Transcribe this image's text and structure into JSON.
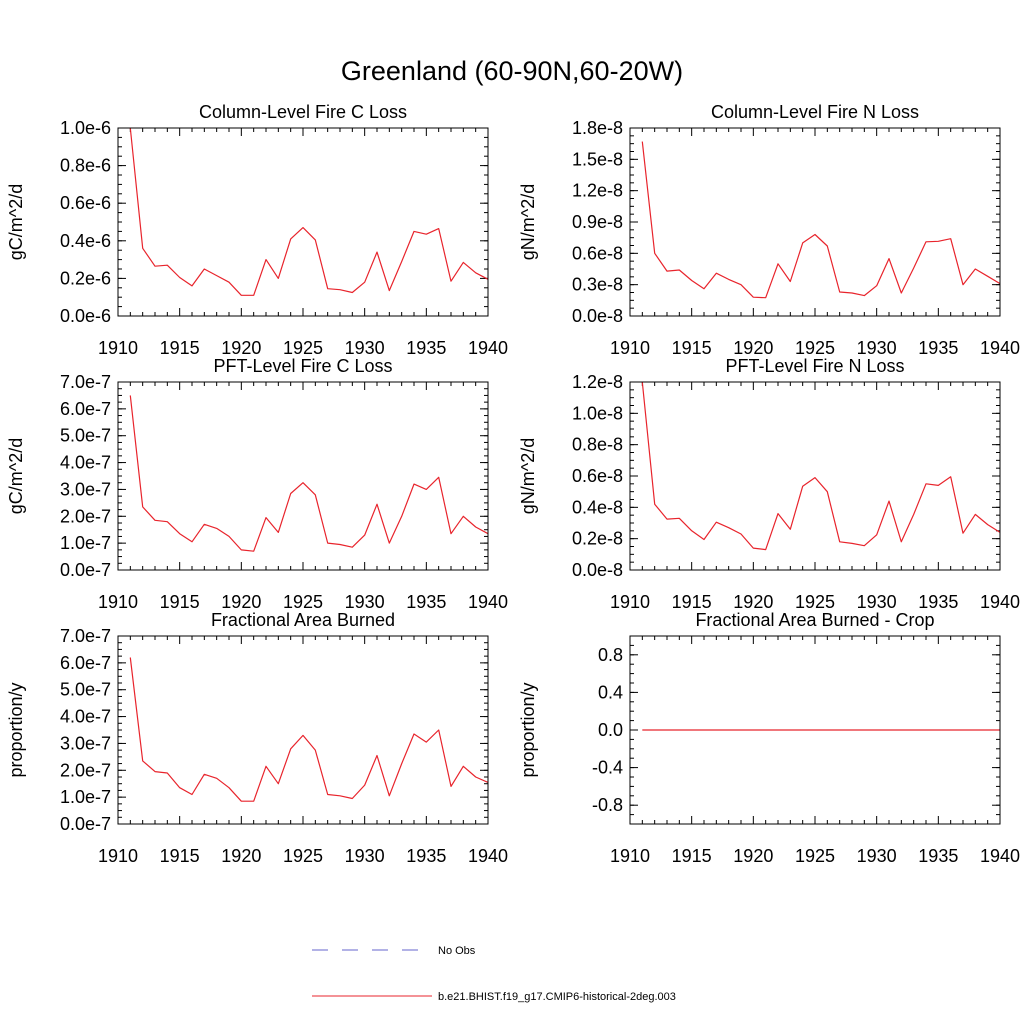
{
  "figure": {
    "title": "Greenland (60-90N,60-20W)"
  },
  "legend": {
    "entries": [
      {
        "label": "No Obs",
        "style": "dashed",
        "color": "#6666cc"
      },
      {
        "label": "b.e21.BHIST.f19_g17.CMIP6-historical-2deg.003",
        "style": "solid",
        "color": "#e8242c"
      }
    ]
  },
  "chart_data": [
    {
      "type": "line",
      "title": "Column-Level Fire C Loss",
      "ylabel": "gC/m^2/d",
      "xlim": [
        1910,
        1940
      ],
      "ylim": [
        0,
        1e-06
      ],
      "xticks": [
        1910,
        1915,
        1920,
        1925,
        1930,
        1935,
        1940
      ],
      "yticks": [
        0,
        2e-07,
        4e-07,
        6e-07,
        8e-07,
        1e-06
      ],
      "ytick_labels": [
        "0.0e-6",
        "0.2e-6",
        "0.4e-6",
        "0.6e-6",
        "0.8e-6",
        "1.0e-6"
      ],
      "series": [
        {
          "color": "#e8242c",
          "x": [
            1911,
            1912,
            1913,
            1914,
            1915,
            1916,
            1917,
            1918,
            1919,
            1920,
            1921,
            1922,
            1923,
            1924,
            1925,
            1926,
            1927,
            1928,
            1929,
            1930,
            1931,
            1932,
            1933,
            1934,
            1935,
            1936,
            1937,
            1938,
            1939,
            1940
          ],
          "values": [
            1e-06,
            3.6e-07,
            2.65e-07,
            2.7e-07,
            2.05e-07,
            1.6e-07,
            2.5e-07,
            2.15e-07,
            1.8e-07,
            1.1e-07,
            1.1e-07,
            3e-07,
            2e-07,
            4.1e-07,
            4.7e-07,
            4.05e-07,
            1.45e-07,
            1.4e-07,
            1.25e-07,
            1.8e-07,
            3.4e-07,
            1.35e-07,
            2.9e-07,
            4.5e-07,
            4.35e-07,
            4.65e-07,
            1.85e-07,
            2.85e-07,
            2.3e-07,
            1.95e-07
          ]
        }
      ]
    },
    {
      "type": "line",
      "title": "Column-Level Fire N Loss",
      "ylabel": "gN/m^2/d",
      "xlim": [
        1910,
        1940
      ],
      "ylim": [
        0,
        1.8e-08
      ],
      "xticks": [
        1910,
        1915,
        1920,
        1925,
        1930,
        1935,
        1940
      ],
      "yticks": [
        0,
        3e-09,
        6e-09,
        9e-09,
        1.2e-08,
        1.5e-08,
        1.8e-08
      ],
      "ytick_labels": [
        "0.0e-8",
        "0.3e-8",
        "0.6e-8",
        "0.9e-8",
        "1.2e-8",
        "1.5e-8",
        "1.8e-8"
      ],
      "series": [
        {
          "color": "#e8242c",
          "x": [
            1911,
            1912,
            1913,
            1914,
            1915,
            1916,
            1917,
            1918,
            1919,
            1920,
            1921,
            1922,
            1923,
            1924,
            1925,
            1926,
            1927,
            1928,
            1929,
            1930,
            1931,
            1932,
            1933,
            1934,
            1935,
            1936,
            1937,
            1938,
            1939,
            1940
          ],
          "values": [
            1.67e-08,
            6e-09,
            4.3e-09,
            4.4e-09,
            3.4e-09,
            2.6e-09,
            4.1e-09,
            3.5e-09,
            3e-09,
            1.8e-09,
            1.75e-09,
            5e-09,
            3.3e-09,
            7e-09,
            7.8e-09,
            6.7e-09,
            2.3e-09,
            2.2e-09,
            1.95e-09,
            2.9e-09,
            5.5e-09,
            2.2e-09,
            4.6e-09,
            7.1e-09,
            7.15e-09,
            7.4e-09,
            3e-09,
            4.5e-09,
            3.8e-09,
            3.1e-09
          ]
        }
      ]
    },
    {
      "type": "line",
      "title": "PFT-Level Fire C Loss",
      "ylabel": "gC/m^2/d",
      "xlim": [
        1910,
        1940
      ],
      "ylim": [
        0,
        7e-07
      ],
      "xticks": [
        1910,
        1915,
        1920,
        1925,
        1930,
        1935,
        1940
      ],
      "yticks": [
        0,
        1e-07,
        2e-07,
        3e-07,
        4e-07,
        5e-07,
        6e-07,
        7e-07
      ],
      "ytick_labels": [
        "0.0e-7",
        "1.0e-7",
        "2.0e-7",
        "3.0e-7",
        "4.0e-7",
        "5.0e-7",
        "6.0e-7",
        "7.0e-7"
      ],
      "series": [
        {
          "color": "#e8242c",
          "x": [
            1911,
            1912,
            1913,
            1914,
            1915,
            1916,
            1917,
            1918,
            1919,
            1920,
            1921,
            1922,
            1923,
            1924,
            1925,
            1926,
            1927,
            1928,
            1929,
            1930,
            1931,
            1932,
            1933,
            1934,
            1935,
            1936,
            1937,
            1938,
            1939,
            1940
          ],
          "values": [
            6.5e-07,
            2.35e-07,
            1.85e-07,
            1.8e-07,
            1.35e-07,
            1.05e-07,
            1.7e-07,
            1.55e-07,
            1.25e-07,
            7.5e-08,
            7e-08,
            1.95e-07,
            1.4e-07,
            2.85e-07,
            3.25e-07,
            2.8e-07,
            1e-07,
            9.5e-08,
            8.5e-08,
            1.3e-07,
            2.45e-07,
            1e-07,
            2e-07,
            3.2e-07,
            3e-07,
            3.45e-07,
            1.35e-07,
            2e-07,
            1.6e-07,
            1.35e-07
          ]
        }
      ]
    },
    {
      "type": "line",
      "title": "PFT-Level Fire N Loss",
      "ylabel": "gN/m^2/d",
      "xlim": [
        1910,
        1940
      ],
      "ylim": [
        0,
        1.2e-08
      ],
      "xticks": [
        1910,
        1915,
        1920,
        1925,
        1930,
        1935,
        1940
      ],
      "yticks": [
        0,
        2e-09,
        4e-09,
        6e-09,
        8e-09,
        1e-08,
        1.2e-08
      ],
      "ytick_labels": [
        "0.0e-8",
        "0.2e-8",
        "0.4e-8",
        "0.6e-8",
        "0.8e-8",
        "1.0e-8",
        "1.2e-8"
      ],
      "series": [
        {
          "color": "#e8242c",
          "x": [
            1911,
            1912,
            1913,
            1914,
            1915,
            1916,
            1917,
            1918,
            1919,
            1920,
            1921,
            1922,
            1923,
            1924,
            1925,
            1926,
            1927,
            1928,
            1929,
            1930,
            1931,
            1932,
            1933,
            1934,
            1935,
            1936,
            1937,
            1938,
            1939,
            1940
          ],
          "values": [
            1.2e-08,
            4.2e-09,
            3.25e-09,
            3.3e-09,
            2.5e-09,
            1.95e-09,
            3.05e-09,
            2.7e-09,
            2.3e-09,
            1.4e-09,
            1.3e-09,
            3.6e-09,
            2.6e-09,
            5.35e-09,
            5.9e-09,
            5e-09,
            1.8e-09,
            1.7e-09,
            1.55e-09,
            2.25e-09,
            4.4e-09,
            1.8e-09,
            3.55e-09,
            5.5e-09,
            5.4e-09,
            5.95e-09,
            2.35e-09,
            3.55e-09,
            2.9e-09,
            2.4e-09
          ]
        }
      ]
    },
    {
      "type": "line",
      "title": "Fractional Area Burned",
      "ylabel": "proportion/y",
      "xlim": [
        1910,
        1940
      ],
      "ylim": [
        0,
        7e-07
      ],
      "xticks": [
        1910,
        1915,
        1920,
        1925,
        1930,
        1935,
        1940
      ],
      "yticks": [
        0,
        1e-07,
        2e-07,
        3e-07,
        4e-07,
        5e-07,
        6e-07,
        7e-07
      ],
      "ytick_labels": [
        "0.0e-7",
        "1.0e-7",
        "2.0e-7",
        "3.0e-7",
        "4.0e-7",
        "5.0e-7",
        "6.0e-7",
        "7.0e-7"
      ],
      "series": [
        {
          "color": "#e8242c",
          "x": [
            1911,
            1912,
            1913,
            1914,
            1915,
            1916,
            1917,
            1918,
            1919,
            1920,
            1921,
            1922,
            1923,
            1924,
            1925,
            1926,
            1927,
            1928,
            1929,
            1930,
            1931,
            1932,
            1933,
            1934,
            1935,
            1936,
            1937,
            1938,
            1939,
            1940
          ],
          "values": [
            6.2e-07,
            2.35e-07,
            1.95e-07,
            1.9e-07,
            1.35e-07,
            1.1e-07,
            1.85e-07,
            1.7e-07,
            1.35e-07,
            8.5e-08,
            8.5e-08,
            2.15e-07,
            1.5e-07,
            2.8e-07,
            3.3e-07,
            2.75e-07,
            1.1e-07,
            1.05e-07,
            9.5e-08,
            1.45e-07,
            2.55e-07,
            1.05e-07,
            2.25e-07,
            3.35e-07,
            3.05e-07,
            3.5e-07,
            1.4e-07,
            2.15e-07,
            1.75e-07,
            1.55e-07
          ]
        }
      ]
    },
    {
      "type": "line",
      "title": "Fractional Area Burned - Crop",
      "ylabel": "proportion/y",
      "xlim": [
        1910,
        1940
      ],
      "ylim": [
        -1.0,
        1.0
      ],
      "xticks": [
        1910,
        1915,
        1920,
        1925,
        1930,
        1935,
        1940
      ],
      "yticks": [
        -0.8,
        -0.4,
        0,
        0.4,
        0.8
      ],
      "ytick_labels": [
        "-0.8",
        "-0.4",
        "0.0",
        "0.4",
        "0.8"
      ],
      "series": [
        {
          "color": "#e8242c",
          "x": [
            1911,
            1912,
            1913,
            1914,
            1915,
            1916,
            1917,
            1918,
            1919,
            1920,
            1921,
            1922,
            1923,
            1924,
            1925,
            1926,
            1927,
            1928,
            1929,
            1930,
            1931,
            1932,
            1933,
            1934,
            1935,
            1936,
            1937,
            1938,
            1939,
            1940
          ],
          "values": [
            0,
            0,
            0,
            0,
            0,
            0,
            0,
            0,
            0,
            0,
            0,
            0,
            0,
            0,
            0,
            0,
            0,
            0,
            0,
            0,
            0,
            0,
            0,
            0,
            0,
            0,
            0,
            0,
            0,
            0
          ]
        }
      ]
    }
  ]
}
